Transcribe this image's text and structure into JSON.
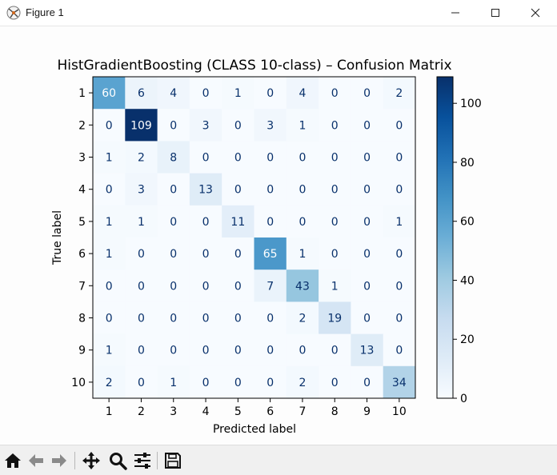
{
  "window": {
    "title": "Figure 1"
  },
  "toolbar": {
    "tools": [
      "home-icon",
      "back-arrow-icon",
      "forward-arrow-icon",
      "pan-icon",
      "zoom-icon",
      "configure-subplots-icon",
      "save-icon"
    ]
  },
  "chart_data": {
    "type": "heatmap",
    "title": "HistGradientBoosting (CLASS 10-class) – Confusion Matrix",
    "xlabel": "Predicted label",
    "ylabel": "True label",
    "x_categories": [
      "1",
      "2",
      "3",
      "4",
      "5",
      "6",
      "7",
      "8",
      "9",
      "10"
    ],
    "y_categories": [
      "1",
      "2",
      "3",
      "4",
      "5",
      "6",
      "7",
      "8",
      "9",
      "10"
    ],
    "matrix": [
      [
        60,
        6,
        4,
        0,
        1,
        0,
        4,
        0,
        0,
        2
      ],
      [
        0,
        109,
        0,
        3,
        0,
        3,
        1,
        0,
        0,
        0
      ],
      [
        1,
        2,
        8,
        0,
        0,
        0,
        0,
        0,
        0,
        0
      ],
      [
        0,
        3,
        0,
        13,
        0,
        0,
        0,
        0,
        0,
        0
      ],
      [
        1,
        1,
        0,
        0,
        11,
        0,
        0,
        0,
        0,
        1
      ],
      [
        1,
        0,
        0,
        0,
        0,
        65,
        1,
        0,
        0,
        0
      ],
      [
        0,
        0,
        0,
        0,
        0,
        7,
        43,
        1,
        0,
        0
      ],
      [
        0,
        0,
        0,
        0,
        0,
        0,
        2,
        19,
        0,
        0
      ],
      [
        1,
        0,
        0,
        0,
        0,
        0,
        0,
        0,
        13,
        0
      ],
      [
        2,
        0,
        1,
        0,
        0,
        0,
        2,
        0,
        0,
        34
      ]
    ],
    "colormap": "Blues",
    "colorbar": {
      "min": 0,
      "max": 109,
      "ticks": [
        0,
        20,
        40,
        60,
        80,
        100
      ]
    }
  }
}
